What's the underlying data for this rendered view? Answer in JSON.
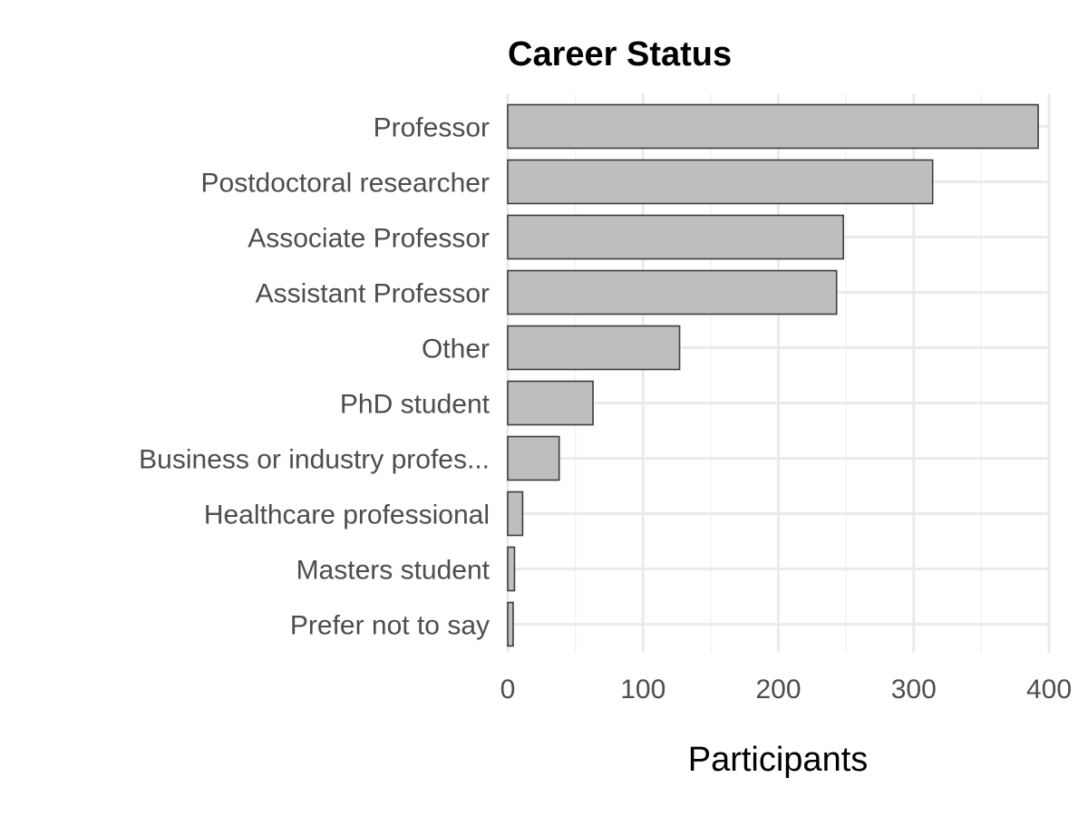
{
  "chart_data": {
    "type": "bar",
    "orientation": "horizontal",
    "title": "Career Status",
    "xlabel": "Participants",
    "ylabel": "",
    "categories": [
      "Professor",
      "Postdoctoral researcher",
      "Associate Professor",
      "Assistant Professor",
      "Other",
      "PhD student",
      "Business or industry profes...",
      "Healthcare professional",
      "Masters student",
      "Prefer not to say"
    ],
    "values": [
      392,
      314,
      248,
      243,
      127,
      63,
      38,
      11,
      5,
      4
    ],
    "xlim": [
      0,
      400
    ],
    "x_ticks": [
      0,
      100,
      200,
      300,
      400
    ],
    "x_tick_labels": [
      "0",
      "100",
      "200",
      "300",
      "400"
    ],
    "grid": true,
    "legend": "none",
    "colors": {
      "bar_fill": "#bebebe",
      "bar_stroke": "#3c3c3c",
      "grid_major": "#ebebeb",
      "grid_minor": "#f2f2f2",
      "label_text": "#4d4d4d",
      "title_text": "#000000"
    }
  }
}
